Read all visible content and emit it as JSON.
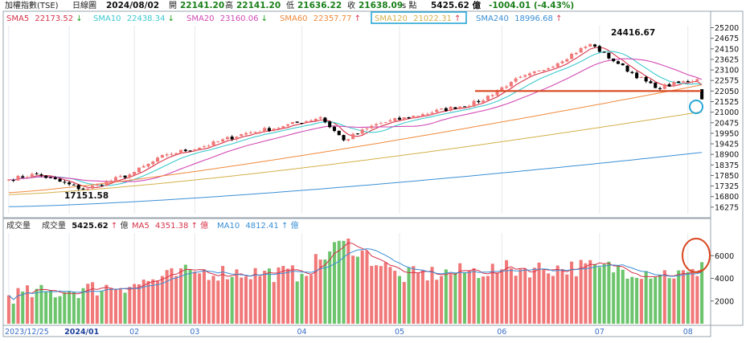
{
  "header": {
    "index_name": "加權指數(TSE)",
    "chart_kind": "日線圖",
    "date": "2024/08/02",
    "open_label": "開",
    "open": "22141.20",
    "high_label": "高",
    "high": "22141.20",
    "low_label": "低",
    "low": "21636.22",
    "close_label": "收",
    "close": "21638.09",
    "close_suffix": "s 點",
    "amount": "5425.62 億",
    "change": "-1004.01 (-4.43%)"
  },
  "ma_legend": [
    {
      "label": "SMA5",
      "value": "22173.52",
      "arrow": "↓",
      "color": "#d6334a"
    },
    {
      "label": "SMA10",
      "value": "22438.34",
      "arrow": "↓",
      "color": "#3cc9cf"
    },
    {
      "label": "SMA20",
      "value": "23160.06",
      "arrow": "↓",
      "color": "#d24ab4"
    },
    {
      "label": "SMA60",
      "value": "22357.77",
      "arrow": "↑",
      "color": "#f08a3c"
    },
    {
      "label": "SMA120",
      "value": "21022.31",
      "arrow": "↑",
      "color": "#d4b04a"
    },
    {
      "label": "SMA240",
      "value": "18996.68",
      "arrow": "↑",
      "color": "#3a8fd6"
    }
  ],
  "volume_legend": {
    "title": "成交量",
    "vol_label": "成交量",
    "vol_value": "5425.62",
    "vol_arrow": "↑",
    "vol_unit": "億",
    "ma5_label": "MA5",
    "ma5_value": "4351.38",
    "ma5_arrow": "↑",
    "ma5_unit": "億",
    "ma10_label": "MA10",
    "ma10_value": "4812.41",
    "ma10_arrow": "↑",
    "ma10_unit": "億"
  },
  "annotations": {
    "high_marker": "24416.67",
    "low_marker": "17151.58"
  },
  "colors": {
    "up": "#f07878",
    "down": "#000000",
    "vol_up": "#f07878",
    "vol_down": "#6cc46c",
    "resistance_line": "#d9461e",
    "highlight_circle": "#2aa7d6",
    "volume_circle": "#d9461e"
  },
  "chart_data": [
    {
      "type": "candlestick",
      "title": "加權指數(TSE) 日線圖",
      "x_labels": [
        "2023/12/25",
        "2024/01",
        "02",
        "03",
        "04",
        "05",
        "06",
        "07",
        "08"
      ],
      "y_ticks": [
        16275,
        16800,
        17325,
        17850,
        18375,
        18900,
        19425,
        19950,
        20475,
        21000,
        21525,
        22050,
        22575,
        23100,
        23625,
        24150,
        24675,
        25200
      ],
      "ylim": [
        15950,
        25300
      ],
      "resistance_level": 22050,
      "ohlc_anchors": [
        {
          "date": "2023/12/25",
          "close": 17650
        },
        {
          "date": "2024/01/02",
          "close": 17920
        },
        {
          "date": "2024/01/17",
          "close": 17151.58
        },
        {
          "date": "2024/02/01",
          "close": 17900
        },
        {
          "date": "2024/02/15",
          "close": 18900
        },
        {
          "date": "2024/03/01",
          "close": 19300
        },
        {
          "date": "2024/03/15",
          "close": 19900
        },
        {
          "date": "2024/04/01",
          "close": 20300
        },
        {
          "date": "2024/04/12",
          "close": 20750
        },
        {
          "date": "2024/04/19",
          "close": 19600
        },
        {
          "date": "2024/05/01",
          "close": 20400
        },
        {
          "date": "2024/05/15",
          "close": 20900
        },
        {
          "date": "2024/06/03",
          "close": 21500
        },
        {
          "date": "2024/06/14",
          "close": 22500
        },
        {
          "date": "2024/06/25",
          "close": 23100
        },
        {
          "date": "2024/07/11",
          "close": 24390
        },
        {
          "date": "2024/07/19",
          "close": 23400
        },
        {
          "date": "2024/07/31",
          "close": 22200
        },
        {
          "date": "2024/08/01",
          "close": 22642.1
        },
        {
          "date": "2024/08/02",
          "open": 22141.2,
          "high": 22141.2,
          "low": 21636.22,
          "close": 21638.09
        }
      ],
      "high_point": 24416.67,
      "low_point": 17151.58
    },
    {
      "type": "bar",
      "title": "成交量",
      "y_ticks": [
        2000,
        4000,
        6000
      ],
      "ylim": [
        0,
        8000
      ],
      "unit": "億",
      "volume_anchors": [
        {
          "date": "2023/12/25",
          "value": 2500
        },
        {
          "date": "2024/01",
          "value": 2900
        },
        {
          "date": "2024/02",
          "value": 3500
        },
        {
          "date": "2024/03",
          "value": 4600
        },
        {
          "date": "2024/04",
          "value": 4400
        },
        {
          "date": "2024/04/19",
          "value": 7300
        },
        {
          "date": "2024/05",
          "value": 4200
        },
        {
          "date": "2024/06",
          "value": 4800
        },
        {
          "date": "2024/07",
          "value": 5000
        },
        {
          "date": "2024/08/01",
          "value": 4200
        },
        {
          "date": "2024/08/02",
          "value": 5425.62
        }
      ]
    }
  ]
}
